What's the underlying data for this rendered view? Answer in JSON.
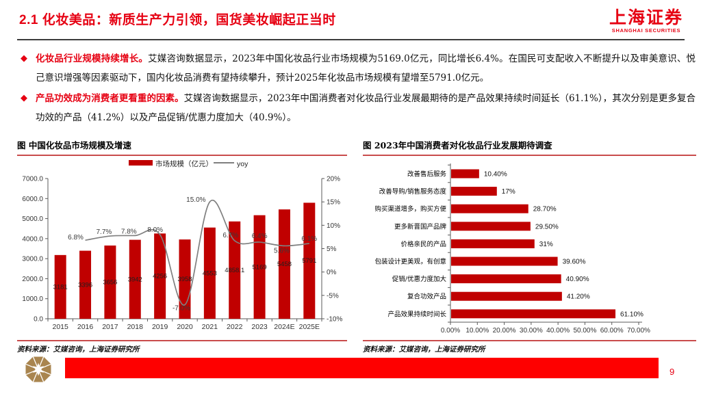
{
  "header": {
    "title": "2.1 化妆美品：新质生产力引领，国货美妆崛起正当时",
    "logo": {
      "cn": "上海证券",
      "en": "SHANGHAI SECURITIES"
    }
  },
  "bullets": [
    {
      "lead": "化妆品行业规模持续增长。",
      "body": "艾媒咨询数据显示，2023年中国化妆品行业市场规模为5169.0亿元，同比增长6.4%。在国民可支配收入不断提升以及审美意识、悦己意识增强等因素驱动下，国内化妆品消费有望持续攀升，预计2025年化妆品市场规模有望增至5791.0亿元。"
    },
    {
      "lead": "产品功效成为消费者更看重的因素。",
      "body": "艾媒咨询数据显示，2023年中国消费者对化妆品行业发展最期待的是产品效果持续时间延长（61.1%），其次分别是更多复合功效的产品（41.2%）以及产品促销/优惠力度加大（40.9%）。"
    }
  ],
  "figures": [
    {
      "title": "图 中国化妆品市场规模及增速",
      "source": "资料来源：艾媒咨询，上海证券研究所"
    },
    {
      "title": "图 2023年中国消费者对化妆品行业发展期待调查",
      "source": "资料来源：艾媒咨询，上海证券研究所"
    }
  ],
  "chart_data": [
    {
      "type": "bar",
      "subtype": "bar+line-dual-axis",
      "categories": [
        "2015",
        "2016",
        "2017",
        "2018",
        "2019",
        "2020",
        "2021",
        "2022",
        "2023",
        "2024E",
        "2025E"
      ],
      "series": [
        {
          "name": "市场规模（亿元）",
          "type": "bar",
          "color": "#c00000",
          "values": [
            3181,
            3396,
            3656,
            3942,
            4256,
            3958,
            4553,
            4858.1,
            5169,
            5458,
            5791
          ],
          "labels": [
            "3181",
            "3396",
            "3656",
            "3942",
            "4256",
            "3958",
            "4553",
            "4858.1",
            "5169",
            "5458",
            "5791"
          ]
        },
        {
          "name": "yoy",
          "type": "line",
          "color": "#7f7f7f",
          "values": [
            null,
            6.8,
            7.7,
            7.8,
            8.0,
            -7.0,
            15.0,
            6.7,
            6.4,
            5.6,
            6.1
          ],
          "labels": [
            "",
            "6.8%",
            "7.7%",
            "7.8%",
            "8.0%",
            "-7.0%",
            "15.0%",
            "6.7%",
            "6.4%",
            "5.6%",
            "6.1%"
          ]
        }
      ],
      "left_axis": {
        "ticks": [
          "7000.0",
          "6000.0",
          "5000.0",
          "4000.0",
          "3000.0",
          "2000.0",
          "1000.0",
          "0.0"
        ],
        "min": 0,
        "max": 7000
      },
      "right_axis": {
        "ticks": [
          "20%",
          "15%",
          "10%",
          "5%",
          "0%",
          "-5%",
          "-10%"
        ],
        "min": -10,
        "max": 20
      },
      "legend_position": "top",
      "grid": false
    },
    {
      "type": "bar",
      "orientation": "horizontal",
      "color": "#c00000",
      "categories": [
        "改善售后服务",
        "改善导购/销售服务态度",
        "购买渠道增多，购买方便",
        "更多新晋国产品牌",
        "价格亲民的产品",
        "包装设计更美观，有创意",
        "促销/优惠力度加大",
        "复合功效产品",
        "产品效果持续时间长"
      ],
      "values": [
        10.4,
        17,
        28.7,
        29.5,
        31,
        39.6,
        40.9,
        41.2,
        61.1
      ],
      "labels": [
        "10.40%",
        "17%",
        "28.70%",
        "29.50%",
        "31%",
        "39.60%",
        "40.90%",
        "41.20%",
        "61.10%"
      ],
      "xticks": [
        "0.00%",
        "10.00%",
        "20.00%",
        "30.00%",
        "40.00%",
        "50.00%",
        "60.00%",
        "70.00%"
      ],
      "xlim": [
        0,
        70
      ],
      "grid": false
    }
  ],
  "footer": {
    "page": "9"
  }
}
